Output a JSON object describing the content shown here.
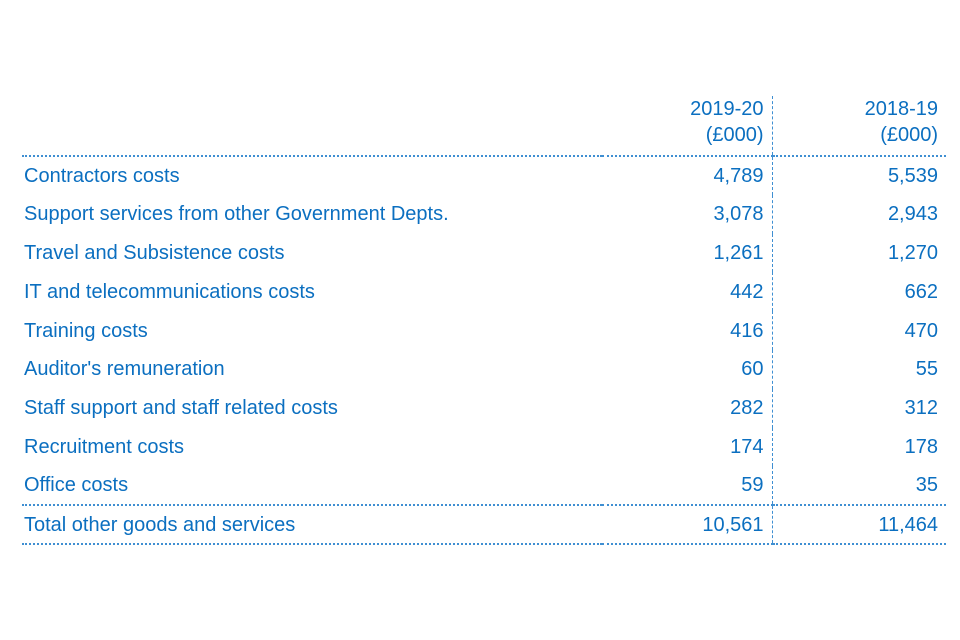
{
  "table": {
    "headers": [
      {
        "year": "2019-20",
        "unit": "(£000)"
      },
      {
        "year": "2018-19",
        "unit": "(£000)"
      }
    ],
    "rows": [
      {
        "label": "Contractors costs",
        "y2019_20": "4,789",
        "y2018_19": "5,539"
      },
      {
        "label": "Support services from other Government Depts.",
        "y2019_20": "3,078",
        "y2018_19": "2,943"
      },
      {
        "label": "Travel and Subsistence costs",
        "y2019_20": "1,261",
        "y2018_19": "1,270"
      },
      {
        "label": "IT and telecommunications costs",
        "y2019_20": "442",
        "y2018_19": "662"
      },
      {
        "label": "Training costs",
        "y2019_20": "416",
        "y2018_19": "470"
      },
      {
        "label": "Auditor's remuneration",
        "y2019_20": "60",
        "y2018_19": "55"
      },
      {
        "label": "Staff support and staff related costs",
        "y2019_20": "282",
        "y2018_19": "312"
      },
      {
        "label": "Recruitment costs",
        "y2019_20": "174",
        "y2018_19": "178"
      },
      {
        "label": "Office costs",
        "y2019_20": "59",
        "y2018_19": "35"
      }
    ],
    "total": {
      "label": "Total other goods and services",
      "y2019_20": "10,561",
      "y2018_19": "11,464"
    }
  },
  "colors": {
    "text": "#0b6fc0",
    "rule": "#3f8fd2",
    "background": "#ffffff"
  }
}
